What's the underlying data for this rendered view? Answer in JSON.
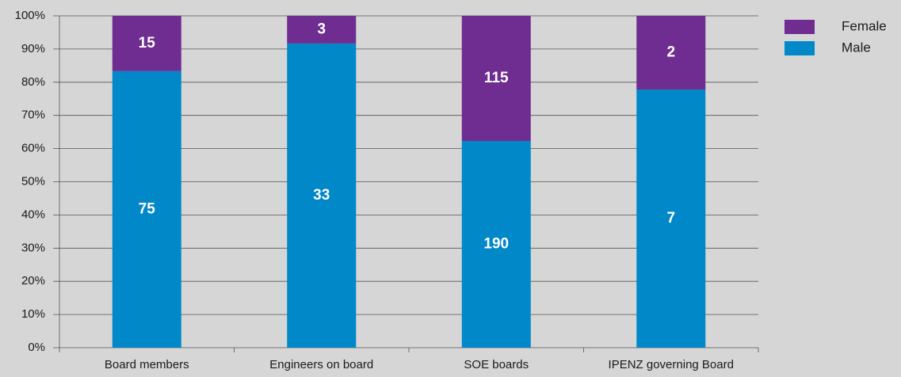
{
  "chart_data": {
    "type": "bar",
    "stacking": "percent",
    "categories": [
      "Board members",
      "Engineers on board",
      "SOE boards",
      "IPENZ governing Board"
    ],
    "series": [
      {
        "name": "Male",
        "color": "#0088c9",
        "values": [
          75,
          33,
          190,
          7
        ]
      },
      {
        "name": "Female",
        "color": "#6f2c91",
        "values": [
          15,
          3,
          115,
          2
        ]
      }
    ],
    "ylim": [
      0,
      100
    ],
    "yticks": [
      {
        "value": 0,
        "label": "0%"
      },
      {
        "value": 10,
        "label": "10%"
      },
      {
        "value": 20,
        "label": "20%"
      },
      {
        "value": 30,
        "label": "30%"
      },
      {
        "value": 40,
        "label": "40%"
      },
      {
        "value": 50,
        "label": "50%"
      },
      {
        "value": 60,
        "label": "60%"
      },
      {
        "value": 70,
        "label": "70%"
      },
      {
        "value": 80,
        "label": "80%"
      },
      {
        "value": 90,
        "label": "90%"
      },
      {
        "value": 100,
        "label": "100%"
      }
    ],
    "grid": true,
    "legend": "top-right"
  }
}
